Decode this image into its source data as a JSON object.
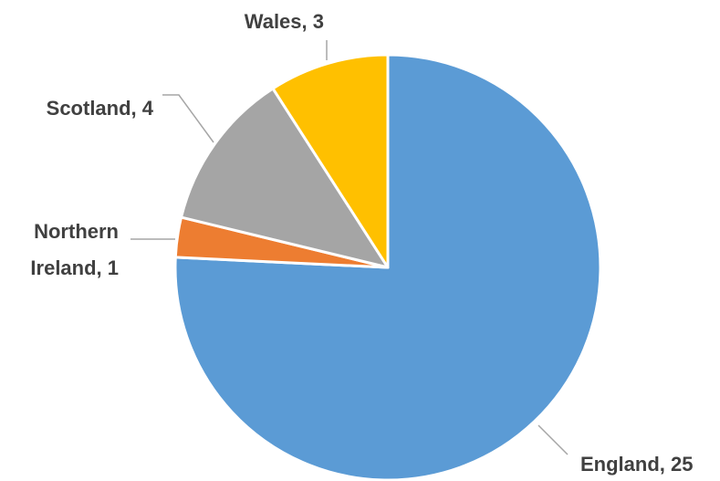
{
  "chart_data": {
    "type": "pie",
    "values": [
      25,
      1,
      4,
      3
    ],
    "value_labels": [
      "England, 25",
      "Northern Ireland, 1",
      "Scotland, 4",
      "Wales, 3"
    ],
    "colors": [
      "#5b9bd5",
      "#ed7d31",
      "#a5a5a5",
      "#ffc000"
    ],
    "start_angle": 0,
    "direction": "clockwise"
  }
}
